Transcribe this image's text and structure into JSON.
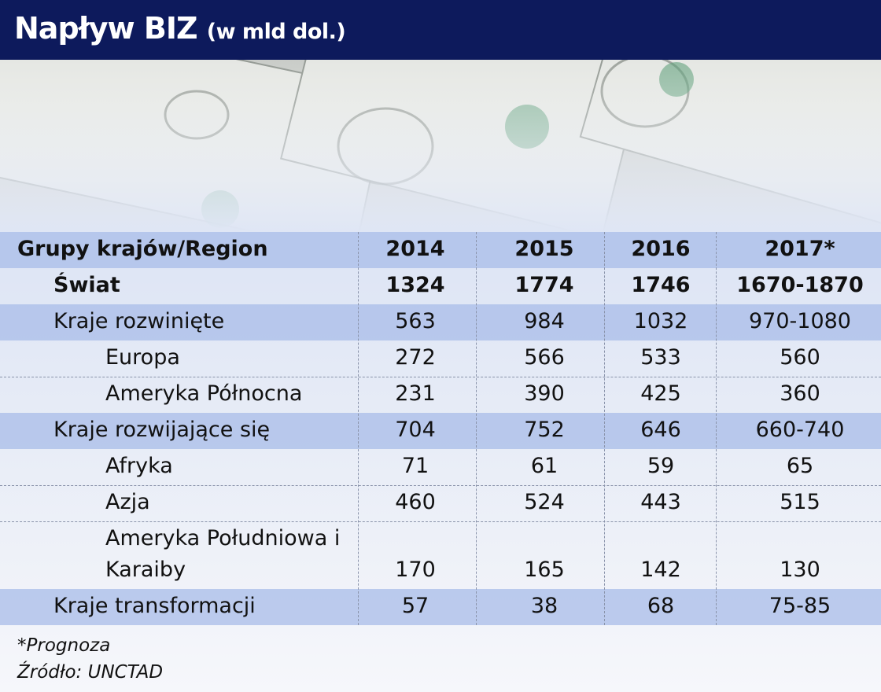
{
  "header": {
    "title": "Napływ BIZ",
    "subtitle": "(w mld dol.)"
  },
  "table": {
    "columns": [
      "Grupy krajów/Region",
      "2014",
      "2015",
      "2016",
      "2017*"
    ],
    "rows": [
      [
        "Świat",
        "1324",
        "1774",
        "1746",
        "1670-1870"
      ],
      [
        "Kraje rozwinięte",
        "563",
        "984",
        "1032",
        "970-1080"
      ],
      [
        "Europa",
        "272",
        "566",
        "533",
        "560"
      ],
      [
        "Ameryka Północna",
        "231",
        "390",
        "425",
        "360"
      ],
      [
        "Kraje rozwijające się",
        "704",
        "752",
        "646",
        "660-740"
      ],
      [
        "Afryka",
        "71",
        "61",
        "59",
        "65"
      ],
      [
        "Azja",
        "460",
        "524",
        "443",
        "515"
      ],
      [
        "Ameryka Południowa i Karaiby",
        "170",
        "165",
        "142",
        "130"
      ],
      [
        "Kraje transformacji",
        "57",
        "38",
        "68",
        "75-85"
      ]
    ]
  },
  "footnotes": [
    "*Prognoza",
    "Źródło: UNCTAD"
  ]
}
